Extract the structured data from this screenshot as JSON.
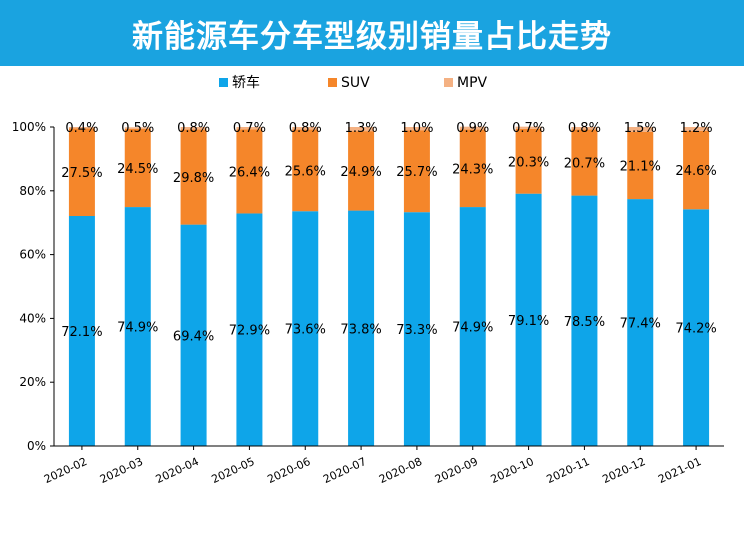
{
  "title": "新能源车分车型级别销量占比走势",
  "colors": {
    "title_bg": "#1aa3e0",
    "sedan": "#0ea5e9",
    "suv": "#f5862a",
    "mpv": "#f4b183"
  },
  "chart_data": {
    "type": "bar",
    "stacked": true,
    "categories": [
      "2020-02",
      "2020-03",
      "2020-04",
      "2020-05",
      "2020-06",
      "2020-07",
      "2020-08",
      "2020-09",
      "2020-10",
      "2020-11",
      "2020-12",
      "2021-01"
    ],
    "series": [
      {
        "name": "轿车",
        "color": "#0ea5e9",
        "values": [
          72.1,
          74.9,
          69.4,
          72.9,
          73.6,
          73.8,
          73.3,
          74.9,
          79.1,
          78.5,
          77.4,
          74.2
        ],
        "labels": [
          "72.1%",
          "74.9%",
          "69.4%",
          "72.9%",
          "73.6%",
          "73.8%",
          "73.3%",
          "74.9%",
          "79.1%",
          "78.5%",
          "77.4%",
          "74.2%"
        ]
      },
      {
        "name": "SUV",
        "color": "#f5862a",
        "values": [
          27.5,
          24.5,
          29.8,
          26.4,
          25.6,
          24.9,
          25.7,
          24.3,
          20.3,
          20.7,
          21.1,
          24.6
        ],
        "labels": [
          "27.5%",
          "24.5%",
          "29.8%",
          "26.4%",
          "25.6%",
          "24.9%",
          "25.7%",
          "24.3%",
          "20.3%",
          "20.7%",
          "21.1%",
          "24.6%"
        ]
      },
      {
        "name": "MPV",
        "color": "#f4b183",
        "values": [
          0.4,
          0.5,
          0.8,
          0.7,
          0.8,
          1.3,
          1.0,
          0.9,
          0.7,
          0.8,
          1.5,
          1.2
        ],
        "labels": [
          "0.4%",
          "0.5%",
          "0.8%",
          "0.7%",
          "0.8%",
          "1.3%",
          "1.0%",
          "0.9%",
          "0.7%",
          "0.8%",
          "1.5%",
          "1.2%"
        ]
      }
    ],
    "ylim": [
      0,
      100
    ],
    "yticks": [
      0,
      20,
      40,
      60,
      80,
      100
    ],
    "ytick_labels": [
      "0%",
      "20%",
      "40%",
      "60%",
      "80%",
      "100%"
    ],
    "legend": [
      "轿车",
      "SUV",
      "MPV"
    ],
    "legend_position": "top",
    "grid": false
  }
}
